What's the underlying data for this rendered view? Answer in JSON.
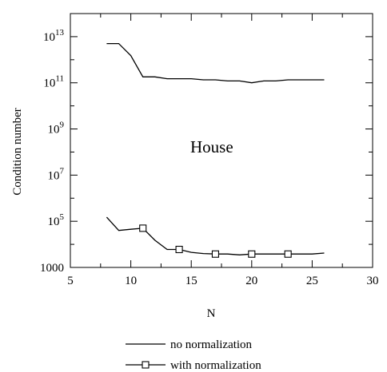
{
  "chart_data": {
    "type": "line",
    "title": "",
    "xlabel": "N",
    "ylabel": "Condition number",
    "xlim": [
      5,
      30
    ],
    "ylim": [
      1000,
      100000000000000.0
    ],
    "yscale": "log",
    "grid": false,
    "annotation": "House",
    "x_ticks": [
      {
        "value": 5,
        "label": "5"
      },
      {
        "value": 10,
        "label": "10"
      },
      {
        "value": 15,
        "label": "15"
      },
      {
        "value": 20,
        "label": "20"
      },
      {
        "value": 25,
        "label": "25"
      },
      {
        "value": 30,
        "label": "30"
      }
    ],
    "y_ticks": [
      {
        "value": 1000,
        "base": "1000",
        "exp": ""
      },
      {
        "value": 100000,
        "base": "10",
        "exp": "5"
      },
      {
        "value": 10000000,
        "base": "10",
        "exp": "7"
      },
      {
        "value": 1000000000,
        "base": "10",
        "exp": "9"
      },
      {
        "value": 100000000000,
        "base": "10",
        "exp": "11"
      },
      {
        "value": 10000000000000,
        "base": "10",
        "exp": "13"
      }
    ],
    "legend_position": "bottom",
    "series": [
      {
        "name": "no normalization",
        "marker": "none",
        "color": "#000000",
        "x": [
          8,
          9,
          10,
          11,
          12,
          13,
          14,
          15,
          16,
          17,
          18,
          19,
          20,
          21,
          22,
          23,
          24,
          25,
          26
        ],
        "values": [
          5000000000000.0,
          5000000000000.0,
          1500000000000.0,
          180000000000.0,
          180000000000.0,
          150000000000.0,
          150000000000.0,
          150000000000.0,
          135000000000.0,
          135000000000.0,
          120000000000.0,
          120000000000.0,
          100000000000.0,
          120000000000.0,
          120000000000.0,
          135000000000.0,
          135000000000.0,
          135000000000.0,
          135000000000.0
        ]
      },
      {
        "name": "with normalization",
        "marker": "square",
        "marker_x": [
          11,
          14,
          17,
          20,
          23
        ],
        "color": "#000000",
        "x": [
          8,
          9,
          10,
          11,
          12,
          13,
          14,
          15,
          16,
          17,
          18,
          19,
          20,
          21,
          22,
          23,
          24,
          25,
          26
        ],
        "values": [
          150000,
          40000,
          45000,
          50000,
          15000,
          6000,
          6000,
          4500,
          4000,
          3800,
          3800,
          3500,
          3800,
          3800,
          3800,
          3800,
          3800,
          3800,
          4200
        ]
      }
    ]
  }
}
